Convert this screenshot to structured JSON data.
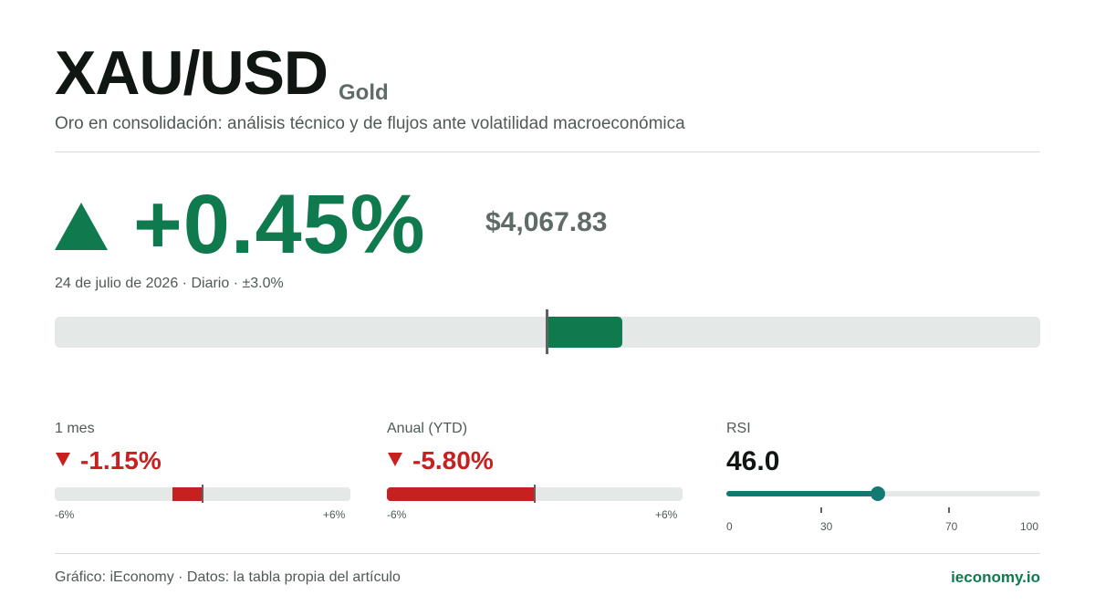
{
  "header": {
    "symbol": "XAU/USD",
    "name": "Gold",
    "description": "Oro en consolidación: análisis técnico y de flujos ante volatilidad macroeconómica"
  },
  "headline": {
    "direction_icon": "triangle-up-icon",
    "change": "+0.45%",
    "change_value": 0.45,
    "price": "$4,067.83",
    "date": "24 de julio de 2026",
    "period": "Diario",
    "range": "±3.0%",
    "separator": " · "
  },
  "metrics": [
    {
      "label": "1 mes",
      "direction_icon": "triangle-down-icon",
      "value": "-1.15%",
      "value_number": -1.15,
      "min_label": "-6%",
      "max_label": "+6%"
    },
    {
      "label": "Anual (YTD)",
      "direction_icon": "triangle-down-icon",
      "value": "-5.80%",
      "value_number": -5.8,
      "min_label": "-6%",
      "max_label": "+6%"
    }
  ],
  "rsi": {
    "label": "RSI",
    "value": "46.0",
    "value_number": 46.0,
    "ticks": [
      "0",
      "30",
      "70",
      "100"
    ]
  },
  "footer": {
    "credit": "Gráfico: iEconomy · Datos: la tabla propia del artículo",
    "brand": "ieconomy.io"
  },
  "colors": {
    "positive": "#0f7a4d",
    "negative": "#c62020",
    "rsi": "#137a73",
    "track": "#e4e8e6"
  }
}
